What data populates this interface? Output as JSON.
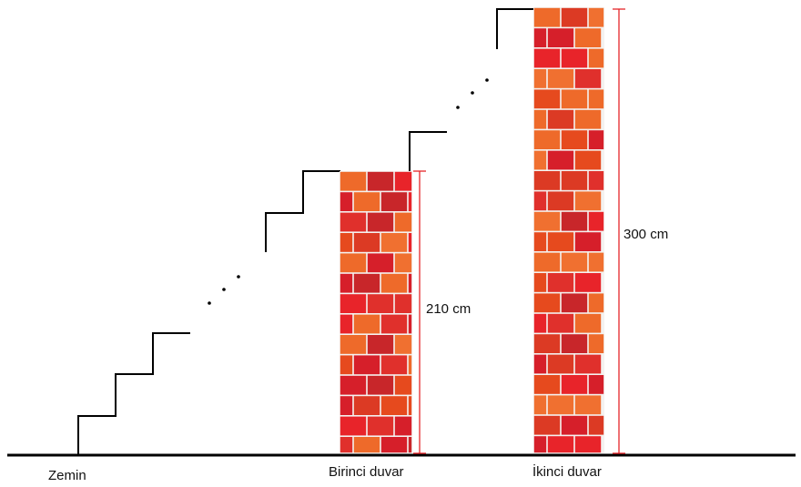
{
  "ground_label": "Zemin",
  "walls": [
    {
      "label": "Birinci duvar",
      "height_label": "210 cm",
      "height_cm": 210
    },
    {
      "label": "İkinci duvar",
      "height_label": "300 cm",
      "height_cm": 300
    }
  ],
  "colors": {
    "brick_palette": [
      "#e8242a",
      "#d61f2a",
      "#e64a1e",
      "#ee6a2a",
      "#c8262a",
      "#f07030",
      "#dc3a24",
      "#e0302c"
    ],
    "mortar": "#f4f2f0",
    "dimension_line": "#e5262a",
    "stairs": "#000000",
    "ground": "#000000"
  }
}
